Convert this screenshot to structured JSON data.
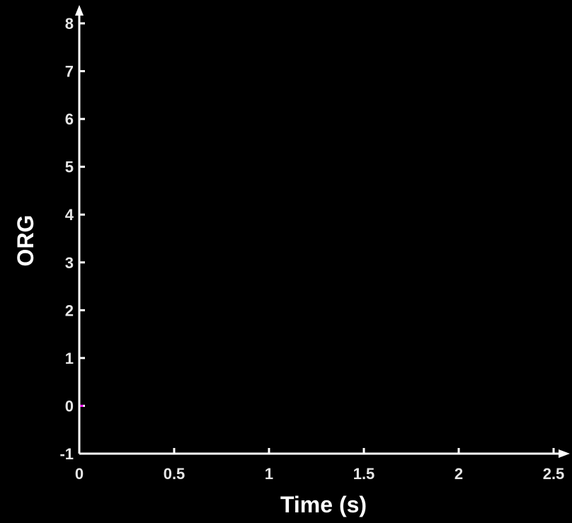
{
  "chart_data": {
    "type": "line",
    "title": "",
    "xlabel": "Time (s)",
    "ylabel": "ORG",
    "xlim": [
      0,
      2.5
    ],
    "ylim": [
      -1,
      8
    ],
    "x_ticks": [
      0,
      0.5,
      1,
      1.5,
      2,
      2.5
    ],
    "x_tick_labels": [
      "0",
      "0.5",
      "1",
      "1.5",
      "2",
      "2.5"
    ],
    "y_ticks": [
      -1,
      0,
      1,
      2,
      3,
      4,
      5,
      6,
      7,
      8
    ],
    "y_tick_labels": [
      "-1",
      "0",
      "1",
      "2",
      "3",
      "4",
      "5",
      "6",
      "7",
      "8"
    ],
    "grid": false,
    "background": "#000000",
    "axis_color": "#ffffff",
    "series": [
      {
        "color": "#ff00ff",
        "x": [
          0,
          0.02
        ],
        "y": [
          0,
          0
        ]
      }
    ]
  }
}
